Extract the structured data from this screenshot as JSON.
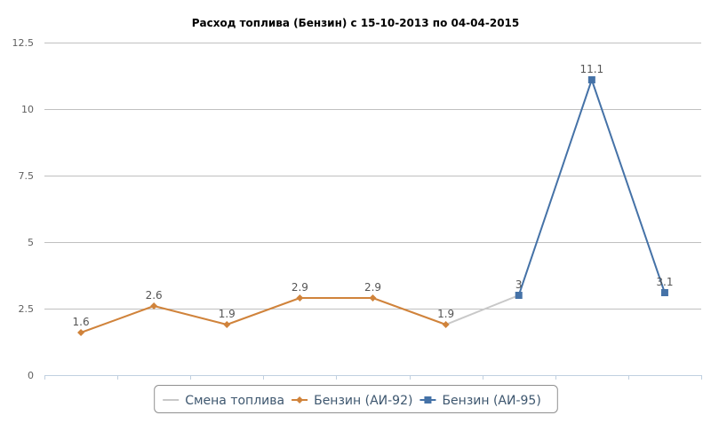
{
  "chart_data": {
    "type": "line",
    "title": "Расход топлива (Бензин) с 15-10-2013 по 04-04-2015",
    "ylim": [
      0,
      12.5
    ],
    "yticks": [
      "0",
      "2.5",
      "5",
      "7.5",
      "10",
      "12.5"
    ],
    "ytick_values": [
      0,
      2.5,
      5,
      7.5,
      10,
      12.5
    ],
    "grid": true,
    "legend_position": "bottom-center",
    "x": [
      1,
      2,
      3,
      4,
      5,
      6,
      7,
      8,
      9
    ],
    "series": [
      {
        "name": "Смена топлива",
        "color": "#c8c8c8",
        "marker": "none",
        "points": [
          [
            6,
            1.9
          ],
          [
            7,
            3
          ]
        ],
        "labels": []
      },
      {
        "name": "Бензин (АИ-92)",
        "color": "#d0833b",
        "marker": "diamond",
        "points": [
          [
            1,
            1.6
          ],
          [
            2,
            2.6
          ],
          [
            3,
            1.9
          ],
          [
            4,
            2.9
          ],
          [
            5,
            2.9
          ],
          [
            6,
            1.9
          ]
        ],
        "labels": [
          "1.6",
          "2.6",
          "1.9",
          "2.9",
          "2.9",
          "1.9"
        ]
      },
      {
        "name": "Бензин (АИ-95)",
        "color": "#4572a7",
        "marker": "square",
        "points": [
          [
            7,
            3
          ],
          [
            8,
            11.1
          ],
          [
            9,
            3.1
          ]
        ],
        "labels": [
          "3",
          "11.1",
          "3.1"
        ]
      }
    ]
  }
}
